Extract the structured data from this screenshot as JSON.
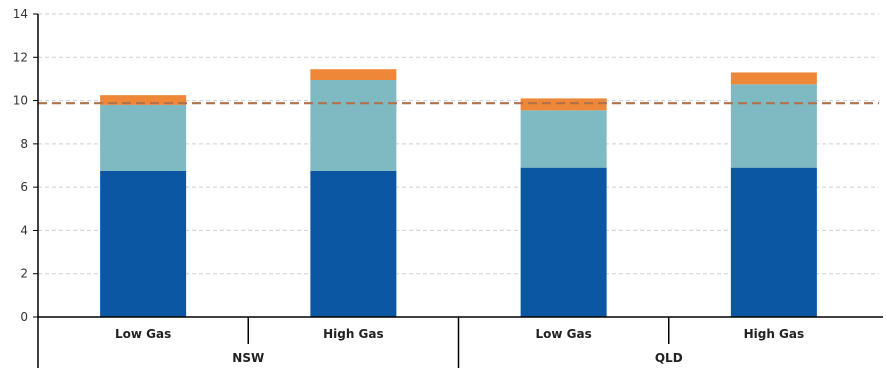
{
  "chart_data": {
    "type": "bar",
    "stacked": true,
    "groups": [
      {
        "name": "NSW",
        "categories": [
          "Low Gas",
          "High Gas"
        ]
      },
      {
        "name": "QLD",
        "categories": [
          "Low Gas",
          "High Gas"
        ]
      }
    ],
    "categories": [
      "Low Gas",
      "High Gas",
      "Low Gas",
      "High Gas"
    ],
    "series": [
      {
        "values": [
          6.75,
          6.75,
          6.9,
          6.9
        ],
        "color": "#0b57a4"
      },
      {
        "values": [
          3.05,
          4.2,
          2.65,
          3.85
        ],
        "color": "#7fb9c2"
      },
      {
        "values": [
          0.45,
          0.5,
          0.55,
          0.55
        ],
        "color": "#ee8838"
      }
    ],
    "reference_line": {
      "value": 9.88,
      "color": "#b0714b",
      "style": "dashed"
    },
    "yticks": [
      0,
      2,
      4,
      6,
      8,
      10,
      12,
      14
    ],
    "ylim": [
      0,
      14
    ],
    "grid": true,
    "title": "",
    "xlabel": "",
    "ylabel": ""
  }
}
